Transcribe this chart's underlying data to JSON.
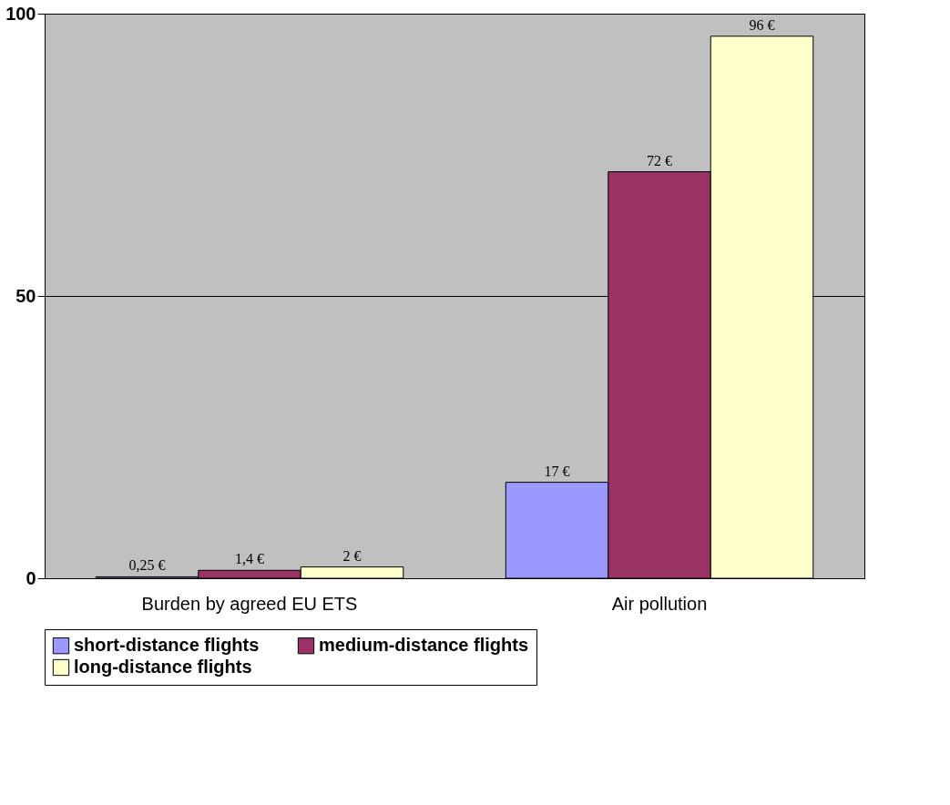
{
  "chart_data": {
    "type": "bar",
    "categories": [
      "Burden by agreed EU ETS",
      "Air pollution"
    ],
    "series": [
      {
        "name": "short-distance flights",
        "color": "#9999ff",
        "values": [
          0.25,
          17
        ],
        "value_labels": [
          "0,25 €",
          "17 €"
        ]
      },
      {
        "name": "medium-distance flights",
        "color": "#993366",
        "values": [
          1.4,
          72
        ],
        "value_labels": [
          "1,4 €",
          "72 €"
        ]
      },
      {
        "name": "long-distance flights",
        "color": "#ffffcc",
        "values": [
          2,
          96
        ],
        "value_labels": [
          "2 €",
          "96 €"
        ]
      }
    ],
    "ylim": [
      0,
      100
    ],
    "yticks": [
      0,
      50,
      100
    ],
    "grid": "y",
    "legend": "bottom"
  }
}
